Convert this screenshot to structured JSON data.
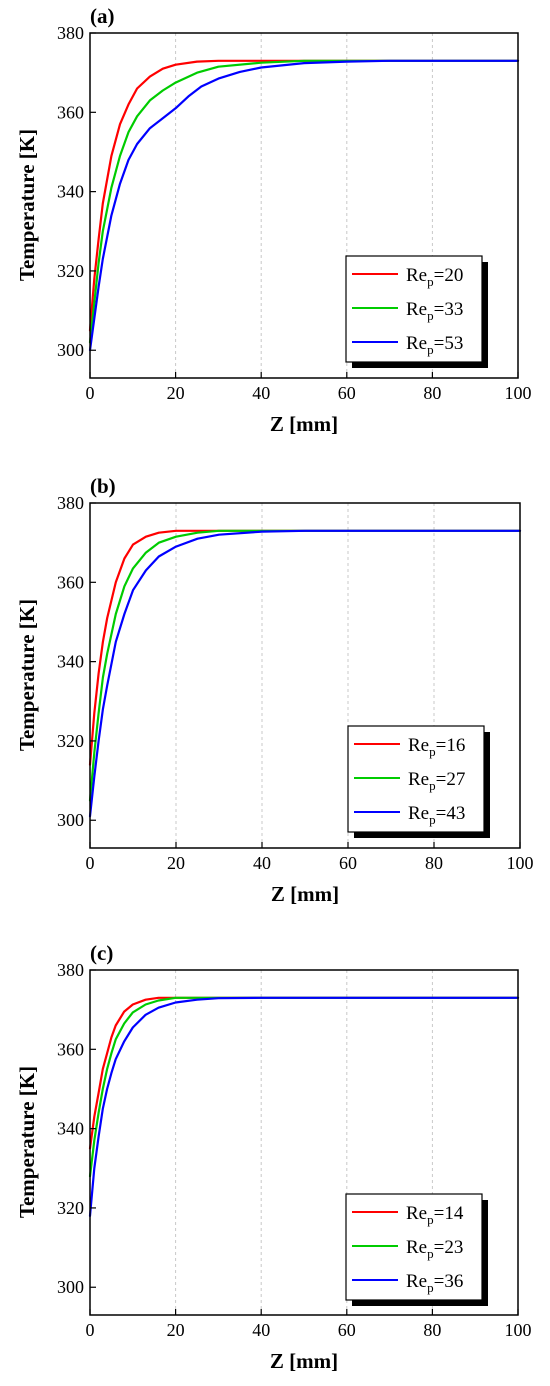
{
  "chart_data": [
    {
      "type": "line",
      "panel_label": "(a)",
      "xlabel": "Z [mm]",
      "ylabel": "Temperature [K]",
      "xlim": [
        0,
        100
      ],
      "ylim": [
        293,
        380
      ],
      "xticks": [
        0,
        20,
        40,
        60,
        80,
        100
      ],
      "yticks": [
        300,
        320,
        340,
        360,
        380
      ],
      "grid": "vertical dashed",
      "legend_position": "bottom-right",
      "series": [
        {
          "name_base": "Re",
          "name_sub": "p",
          "name_value": "=20",
          "color": "#ff0000",
          "x": [
            0,
            1,
            2,
            3,
            5,
            7,
            9,
            11,
            14,
            17,
            20,
            25,
            30,
            40,
            60,
            100
          ],
          "y": [
            305,
            318,
            328,
            337,
            349,
            357,
            362,
            366,
            369,
            371,
            372,
            372.8,
            373,
            373,
            373,
            373
          ]
        },
        {
          "name_base": "Re",
          "name_sub": "p",
          "name_value": "=33",
          "color": "#00cc00",
          "x": [
            0,
            1,
            2,
            3,
            5,
            7,
            9,
            11,
            14,
            17,
            20,
            25,
            30,
            40,
            50,
            60,
            100
          ],
          "y": [
            302,
            312,
            322,
            330,
            341,
            349,
            355,
            359,
            363,
            365.5,
            367.5,
            370,
            371.5,
            372.5,
            373,
            373,
            373
          ]
        },
        {
          "name_base": "Re",
          "name_sub": "p",
          "name_value": "=53",
          "color": "#0000ff",
          "x": [
            0,
            1,
            2,
            3,
            5,
            7,
            9,
            11,
            14,
            17,
            20,
            23,
            26,
            30,
            35,
            40,
            50,
            60,
            70,
            100
          ],
          "y": [
            300,
            308,
            316,
            323,
            334,
            342,
            348,
            352,
            356,
            358.5,
            361,
            364,
            366.5,
            368.5,
            370.2,
            371.3,
            372.4,
            372.8,
            373,
            373
          ]
        }
      ]
    },
    {
      "type": "line",
      "panel_label": "(b)",
      "xlabel": "Z [mm]",
      "ylabel": "Temperature [K]",
      "xlim": [
        0,
        100
      ],
      "ylim": [
        293,
        380
      ],
      "xticks": [
        0,
        20,
        40,
        60,
        80,
        100
      ],
      "yticks": [
        300,
        320,
        340,
        360,
        380
      ],
      "grid": "vertical dashed",
      "legend_position": "bottom-right",
      "series": [
        {
          "name_base": "Re",
          "name_sub": "p",
          "name_value": "=16",
          "color": "#ff0000",
          "x": [
            0,
            1,
            2,
            3,
            4,
            6,
            8,
            10,
            13,
            16,
            20,
            25,
            30,
            40,
            100
          ],
          "y": [
            314,
            327,
            337,
            345,
            351,
            360,
            366,
            369.5,
            371.5,
            372.5,
            373,
            373,
            373,
            373,
            373
          ]
        },
        {
          "name_base": "Re",
          "name_sub": "p",
          "name_value": "=27",
          "color": "#00cc00",
          "x": [
            0,
            1,
            2,
            3,
            4,
            6,
            8,
            10,
            13,
            16,
            20,
            25,
            30,
            40,
            100
          ],
          "y": [
            305,
            317,
            327,
            336,
            342,
            352,
            359,
            363.5,
            367.5,
            370,
            371.5,
            372.5,
            373,
            373,
            373
          ]
        },
        {
          "name_base": "Re",
          "name_sub": "p",
          "name_value": "=43",
          "color": "#0000ff",
          "x": [
            0,
            1,
            2,
            3,
            4,
            6,
            8,
            10,
            13,
            16,
            20,
            25,
            30,
            40,
            50,
            100
          ],
          "y": [
            301,
            311,
            320,
            328,
            334,
            345,
            352,
            358,
            363,
            366.5,
            369,
            371,
            372,
            372.8,
            373,
            373
          ]
        }
      ]
    },
    {
      "type": "line",
      "panel_label": "(c)",
      "xlabel": "Z [mm]",
      "ylabel": "Temperature [K]",
      "xlim": [
        0,
        100
      ],
      "ylim": [
        293,
        380
      ],
      "xticks": [
        0,
        20,
        40,
        60,
        80,
        100
      ],
      "yticks": [
        300,
        320,
        340,
        360,
        380
      ],
      "grid": "vertical dashed",
      "legend_position": "bottom-right",
      "series": [
        {
          "name_base": "Re",
          "name_sub": "p",
          "name_value": "=14",
          "color": "#ff0000",
          "x": [
            0,
            1,
            2,
            3,
            4,
            5,
            6,
            8,
            10,
            13,
            16,
            20,
            25,
            30,
            100
          ],
          "y": [
            335,
            343,
            349,
            355,
            359,
            363,
            366,
            369.5,
            371.3,
            372.5,
            373,
            373,
            373,
            373,
            373
          ]
        },
        {
          "name_base": "Re",
          "name_sub": "p",
          "name_value": "=23",
          "color": "#00cc00",
          "x": [
            0,
            1,
            2,
            3,
            4,
            5,
            6,
            8,
            10,
            13,
            16,
            20,
            25,
            30,
            100
          ],
          "y": [
            328,
            337,
            344,
            350,
            355,
            359,
            362.5,
            366.5,
            369.3,
            371.3,
            372.3,
            373,
            373,
            373,
            373
          ]
        },
        {
          "name_base": "Re",
          "name_sub": "p",
          "name_value": "=36",
          "color": "#0000ff",
          "x": [
            0,
            1,
            2,
            3,
            4,
            5,
            6,
            8,
            10,
            13,
            16,
            20,
            25,
            30,
            40,
            100
          ],
          "y": [
            318,
            330,
            338,
            345,
            350,
            354,
            357.5,
            362,
            365.5,
            368.7,
            370.5,
            371.8,
            372.5,
            372.9,
            373,
            373
          ]
        }
      ]
    }
  ]
}
